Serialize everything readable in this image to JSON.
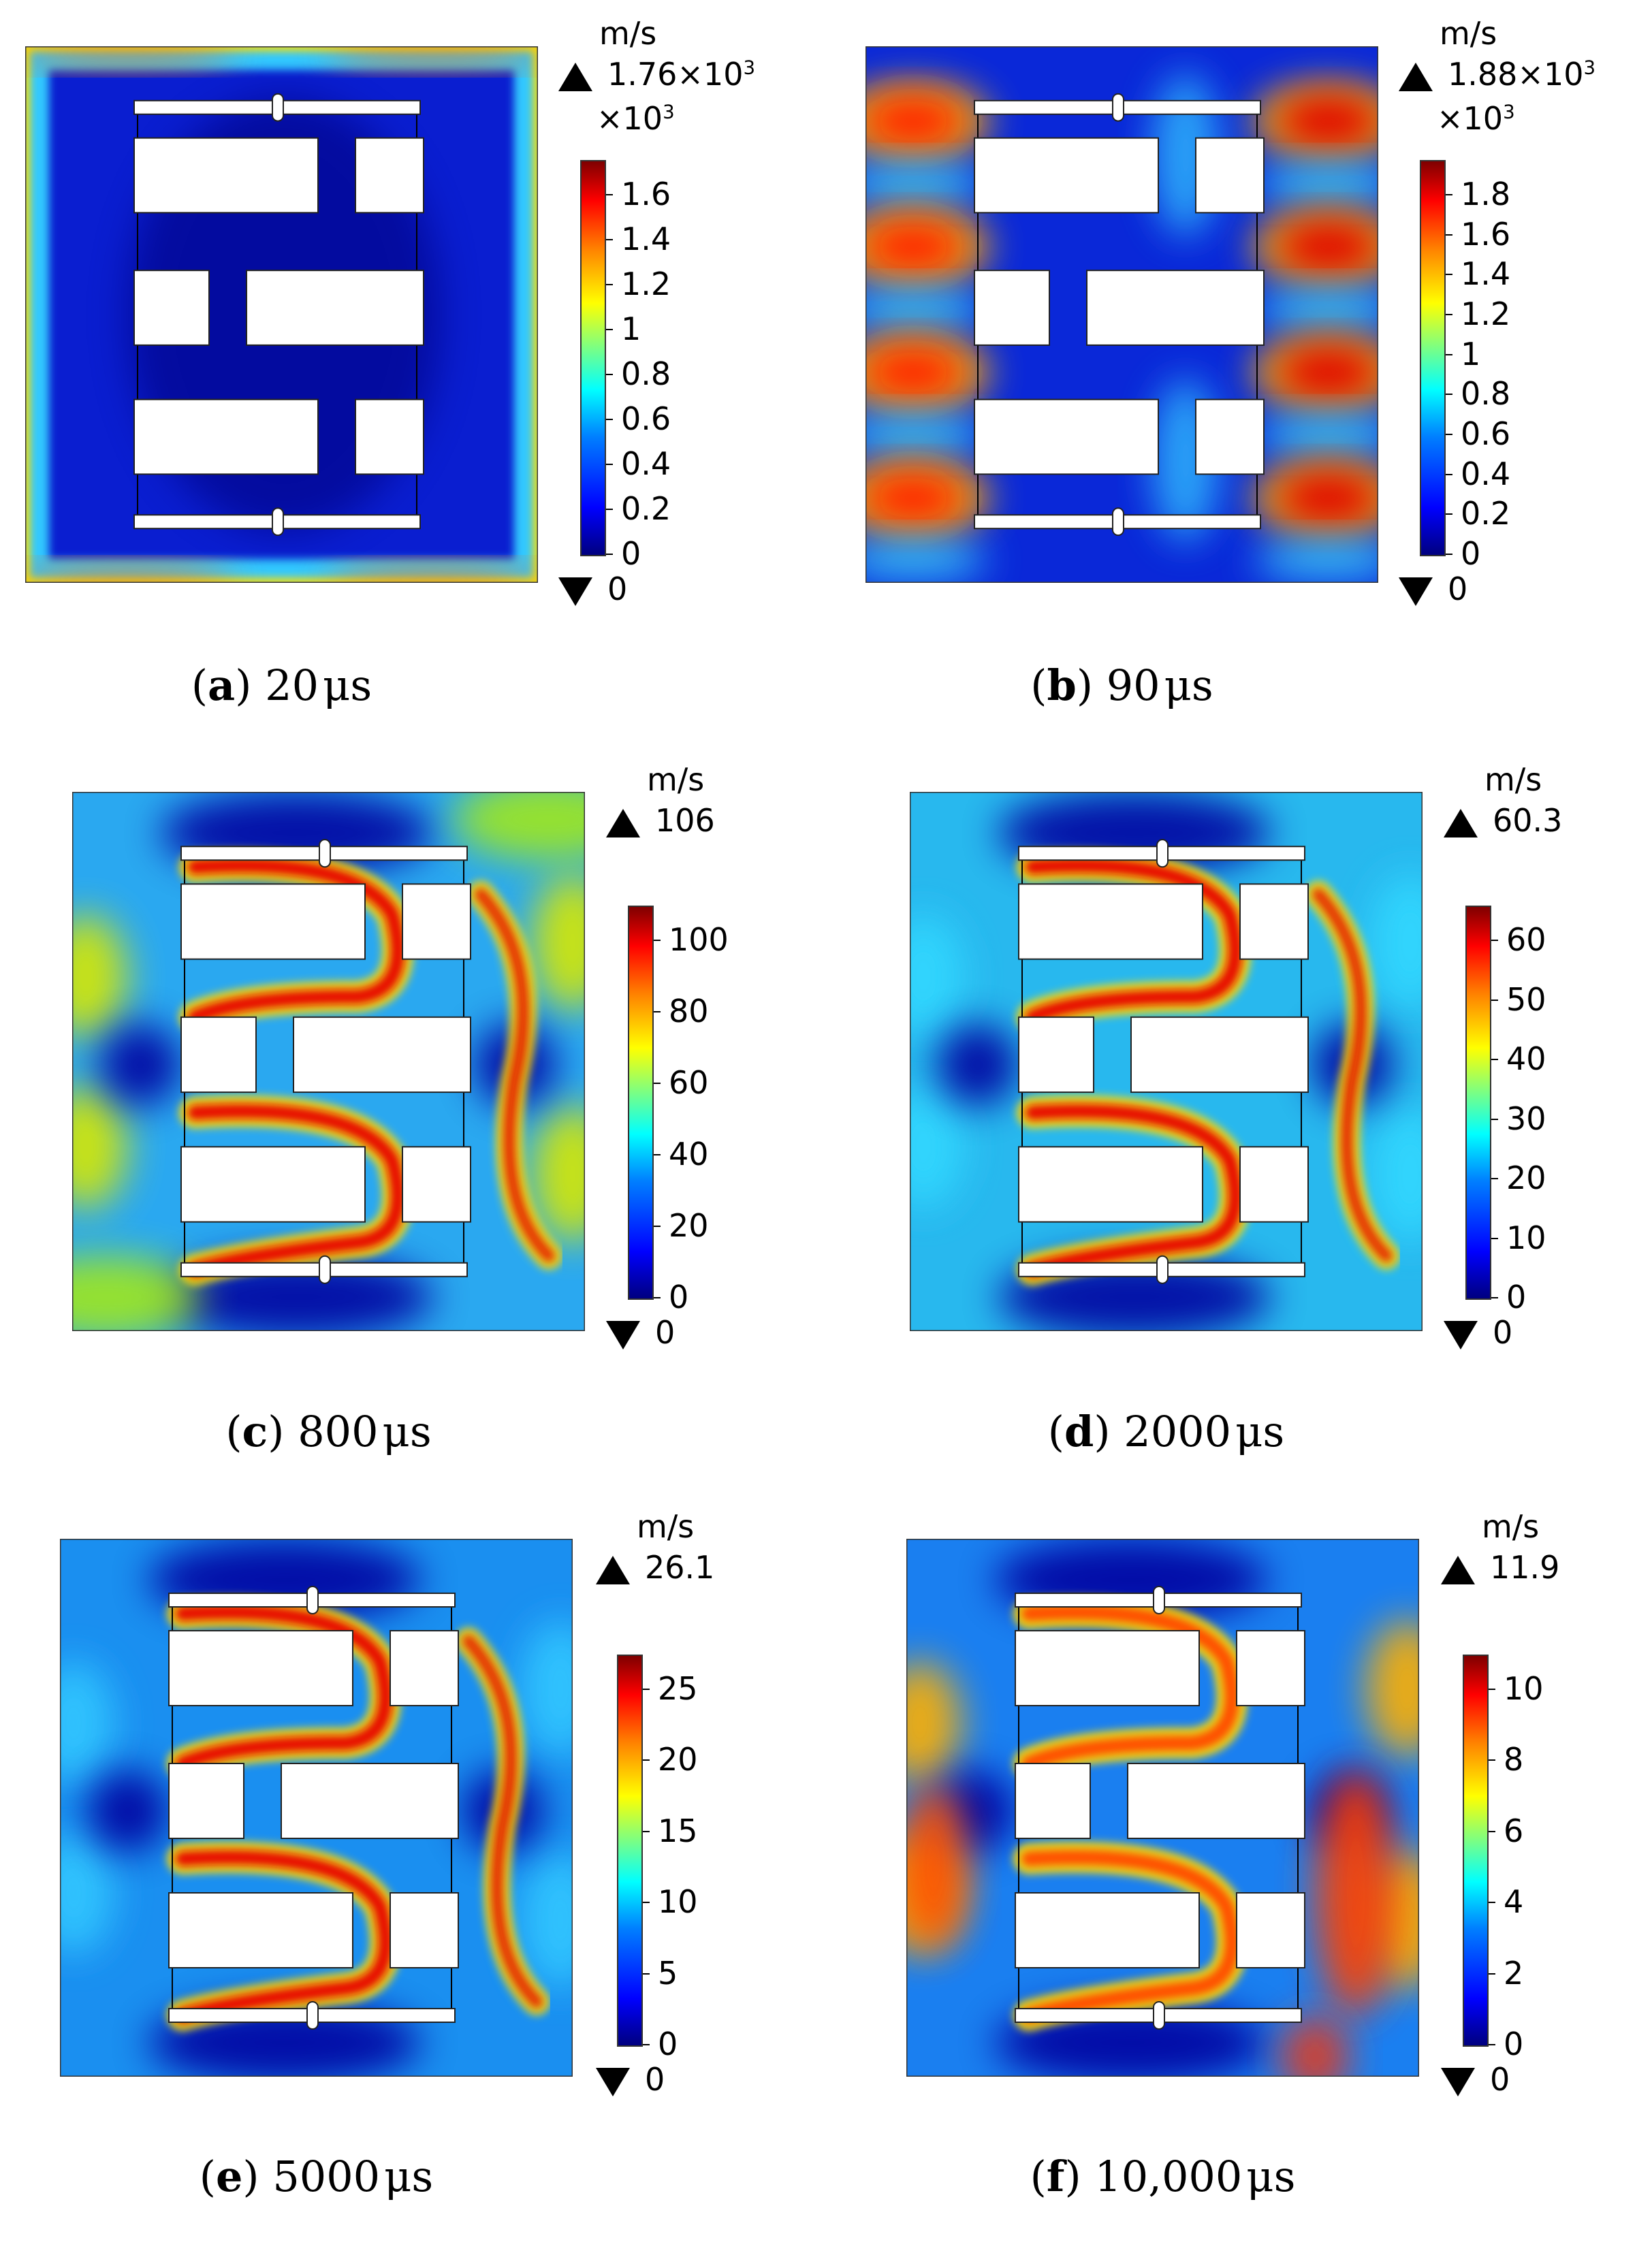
{
  "panels": [
    {
      "letter": "a",
      "time": "20",
      "time_unit": "μs",
      "unit": "m/s",
      "max": "1.76×10",
      "max_exp": "3",
      "min": "0",
      "multiplier": "×10",
      "multiplier_exp": "3",
      "ticks": [
        "1.6",
        "1.4",
        "1.2",
        "1",
        "0.8",
        "0.6",
        "0.4",
        "0.2",
        "0"
      ],
      "pattern": "a"
    },
    {
      "letter": "b",
      "time": "90",
      "time_unit": "μs",
      "unit": "m/s",
      "max": "1.88×10",
      "max_exp": "3",
      "min": "0",
      "multiplier": "×10",
      "multiplier_exp": "3",
      "ticks": [
        "1.8",
        "1.6",
        "1.4",
        "1.2",
        "1",
        "0.8",
        "0.6",
        "0.4",
        "0.2",
        "0"
      ],
      "pattern": "b"
    },
    {
      "letter": "c",
      "time": "800",
      "time_unit": "μs",
      "unit": "m/s",
      "max": "106",
      "max_exp": "",
      "min": "0",
      "multiplier": "",
      "multiplier_exp": "",
      "ticks": [
        "100",
        "80",
        "60",
        "40",
        "20",
        "0"
      ],
      "pattern": "c"
    },
    {
      "letter": "d",
      "time": "2000",
      "time_unit": "μs",
      "unit": "m/s",
      "max": "60.3",
      "max_exp": "",
      "min": "0",
      "multiplier": "",
      "multiplier_exp": "",
      "ticks": [
        "60",
        "50",
        "40",
        "30",
        "20",
        "10",
        "0"
      ],
      "pattern": "d"
    },
    {
      "letter": "e",
      "time": "5000",
      "time_unit": "μs",
      "unit": "m/s",
      "max": "26.1",
      "max_exp": "",
      "min": "0",
      "multiplier": "",
      "multiplier_exp": "",
      "ticks": [
        "25",
        "20",
        "15",
        "10",
        "5",
        "0"
      ],
      "pattern": "e"
    },
    {
      "letter": "f",
      "time": "10,000",
      "time_unit": "μs",
      "unit": "m/s",
      "max": "11.9",
      "max_exp": "",
      "min": "0",
      "multiplier": "",
      "multiplier_exp": "",
      "ticks": [
        "10",
        "8",
        "6",
        "4",
        "2",
        "0"
      ],
      "pattern": "f"
    }
  ],
  "colors": {
    "low": "#00007f",
    "mid": "#00ffff",
    "high": "#7f0000",
    "obstacle": "#ffffff"
  }
}
